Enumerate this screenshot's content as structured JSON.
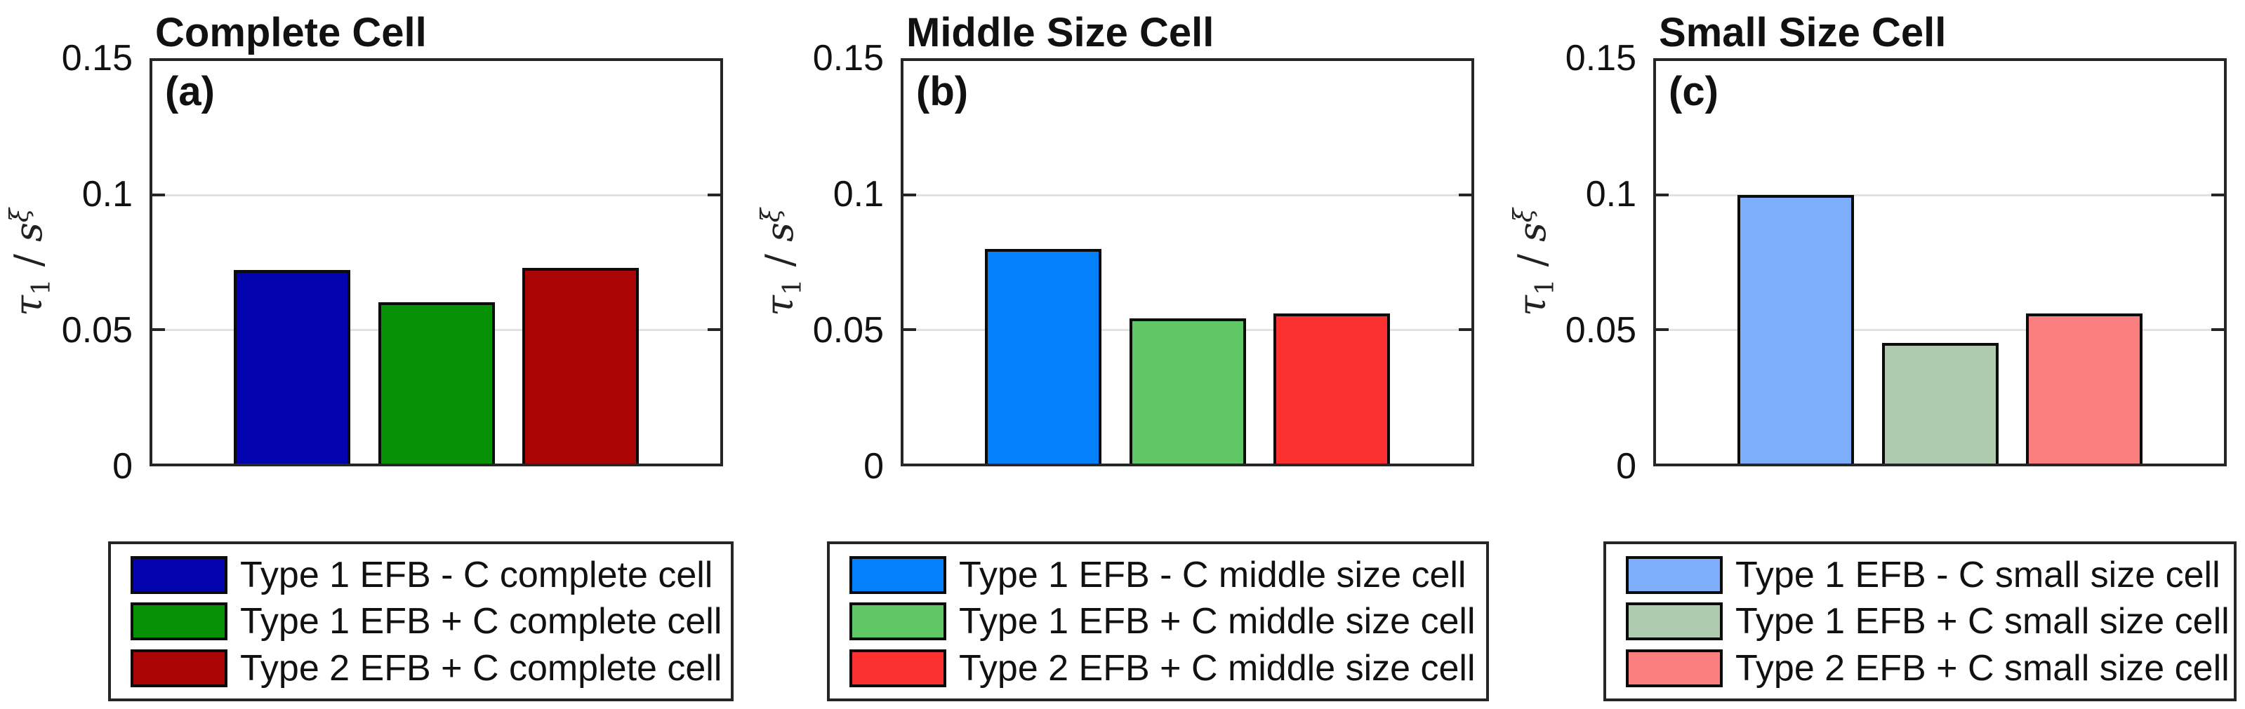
{
  "figure": {
    "background": "#ffffff",
    "axis_color": "#262626",
    "gridline_color": "#e2e2e2"
  },
  "axis_label": {
    "tau": "τ",
    "tau_sub": "1",
    "slash": "/",
    "s": "s",
    "s_sup": "ξ"
  },
  "chart_data": [
    {
      "type": "bar",
      "title": "Complete Cell",
      "panel_label": "(a)",
      "ylabel": "τ₁ / s^ξ",
      "ylim": [
        0,
        0.15
      ],
      "yticks": [
        "0.15",
        "0.1",
        "0.05",
        "0"
      ],
      "grid": "horizontal gridlines at 0.05 and 0.1",
      "legend_position": "below",
      "categories": [
        "Type 1 EFB - C complete cell",
        "Type 1 EFB + C complete cell",
        "Type 2 EFB + C complete cell"
      ],
      "values": [
        0.072,
        0.06,
        0.073
      ],
      "series": [
        {
          "name": "Type 1 EFB - C complete cell",
          "value": 0.072,
          "color": "#0404AE"
        },
        {
          "name": "Type 1 EFB + C complete cell",
          "value": 0.06,
          "color": "#069106"
        },
        {
          "name": "Type 2 EFB + C complete cell",
          "value": 0.073,
          "color": "#AB0404"
        }
      ]
    },
    {
      "type": "bar",
      "title": "Middle Size Cell",
      "panel_label": "(b)",
      "ylabel": "τ₁ / s^ξ",
      "ylim": [
        0,
        0.15
      ],
      "yticks": [
        "0.15",
        "0.1",
        "0.05",
        "0"
      ],
      "grid": "horizontal gridlines at 0.05 and 0.1",
      "legend_position": "below",
      "categories": [
        "Type 1 EFB - C middle size cell",
        "Type 1 EFB + C middle size cell",
        "Type 2 EFB + C middle size cell"
      ],
      "values": [
        0.08,
        0.054,
        0.056
      ],
      "series": [
        {
          "name": "Type 1 EFB - C middle size cell",
          "value": 0.08,
          "color": "#0480FC"
        },
        {
          "name": "Type 1 EFB + C middle size cell",
          "value": 0.054,
          "color": "#5FC763"
        },
        {
          "name": "Type 2 EFB + C middle size cell",
          "value": 0.056,
          "color": "#FB3030"
        }
      ]
    },
    {
      "type": "bar",
      "title": "Small Size Cell",
      "panel_label": "(c)",
      "ylabel": "τ₁ / s^ξ",
      "ylim": [
        0,
        0.15
      ],
      "yticks": [
        "0.15",
        "0.1",
        "0.05",
        "0"
      ],
      "grid": "horizontal gridlines at 0.05 and 0.1",
      "legend_position": "below",
      "categories": [
        "Type 1 EFB - C small size cell",
        "Type 1 EFB + C small size cell",
        "Type 2 EFB + C small size cell"
      ],
      "values": [
        0.1,
        0.045,
        0.056
      ],
      "series": [
        {
          "name": "Type 1 EFB - C small size cell",
          "value": 0.1,
          "color": "#7DAEFB"
        },
        {
          "name": "Type 1 EFB + C small size cell",
          "value": 0.045,
          "color": "#AECAAF"
        },
        {
          "name": "Type 2 EFB + C small size cell",
          "value": 0.056,
          "color": "#FB7F7F"
        }
      ]
    }
  ]
}
